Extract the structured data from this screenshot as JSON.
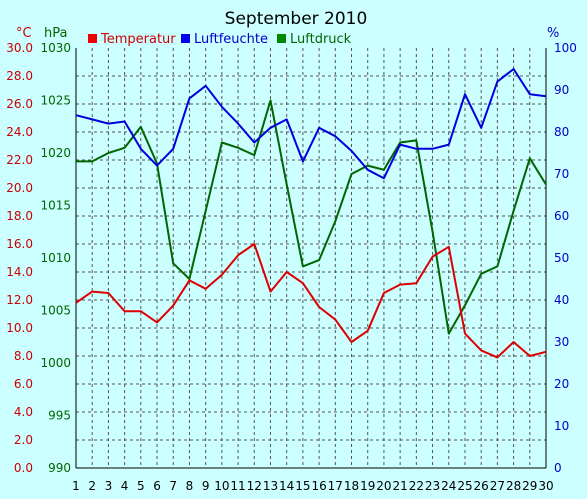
{
  "chart_data": {
    "type": "line",
    "title": "September 2010",
    "units": {
      "temperature": "°C",
      "pressure": "hPa",
      "humidity": "%"
    },
    "x": [
      1,
      2,
      3,
      4,
      5,
      6,
      7,
      8,
      9,
      10,
      11,
      12,
      13,
      14,
      15,
      16,
      17,
      18,
      19,
      20,
      21,
      22,
      23,
      24,
      25,
      26,
      27,
      28,
      29,
      30
    ],
    "x_ticks": [
      "1",
      "2",
      "3",
      "4",
      "5",
      "6",
      "7",
      "8",
      "9",
      "10",
      "11",
      "12",
      "13",
      "14",
      "15",
      "16",
      "17",
      "18",
      "19",
      "20",
      "21",
      "22",
      "23",
      "24",
      "25",
      "26",
      "27",
      "28",
      "29",
      "30"
    ],
    "xlim": [
      1,
      30
    ],
    "axes": {
      "temperature": {
        "ylim": [
          0,
          30
        ],
        "ticks": [
          "0.0",
          "2.0",
          "4.0",
          "6.0",
          "8.0",
          "10.0",
          "12.0",
          "14.0",
          "16.0",
          "18.0",
          "20.0",
          "22.0",
          "24.0",
          "26.0",
          "28.0",
          "30.0"
        ]
      },
      "pressure": {
        "ylim": [
          990,
          1030
        ],
        "ticks": [
          "990",
          "995",
          "1000",
          "1005",
          "1010",
          "1015",
          "1020",
          "1025",
          "1030"
        ]
      },
      "humidity": {
        "ylim": [
          0,
          100
        ],
        "ticks": [
          "0",
          "10",
          "20",
          "30",
          "40",
          "50",
          "60",
          "70",
          "80",
          "90",
          "100"
        ]
      }
    },
    "series": [
      {
        "name": "Temperatur",
        "axis": "temperature",
        "color": "#dd0000",
        "values": [
          11.8,
          12.6,
          12.5,
          11.2,
          11.2,
          10.4,
          11.6,
          13.4,
          12.8,
          13.8,
          15.2,
          16.0,
          12.6,
          14.0,
          13.2,
          11.5,
          10.6,
          9.0,
          9.8,
          12.5,
          13.1,
          13.2,
          15.1,
          15.8,
          9.6,
          8.4,
          7.9,
          9.0,
          8.0,
          8.3
        ]
      },
      {
        "name": "Luftfeuchte",
        "axis": "humidity",
        "color": "#0000dd",
        "values": [
          84,
          83,
          82,
          82.5,
          76,
          72,
          76,
          88,
          91,
          86,
          82,
          77.5,
          81,
          83,
          73,
          81,
          79,
          75.5,
          71,
          69,
          77,
          76,
          76,
          77,
          89,
          81,
          92,
          95,
          89,
          88.5
        ]
      },
      {
        "name": "Luftdruck",
        "axis": "pressure",
        "color": "#006600",
        "values": [
          1019.2,
          1019.2,
          1020,
          1020.5,
          1022.5,
          1019,
          1009.5,
          1008,
          1014.5,
          1021,
          1020.5,
          1019.8,
          1025,
          1017,
          1009.2,
          1009.8,
          1013.5,
          1018,
          1018.8,
          1018.4,
          1021,
          1021.2,
          1012.5,
          1002.8,
          1005.5,
          1008.5,
          1009.2,
          1014.5,
          1019.5,
          1017
        ]
      }
    ]
  }
}
